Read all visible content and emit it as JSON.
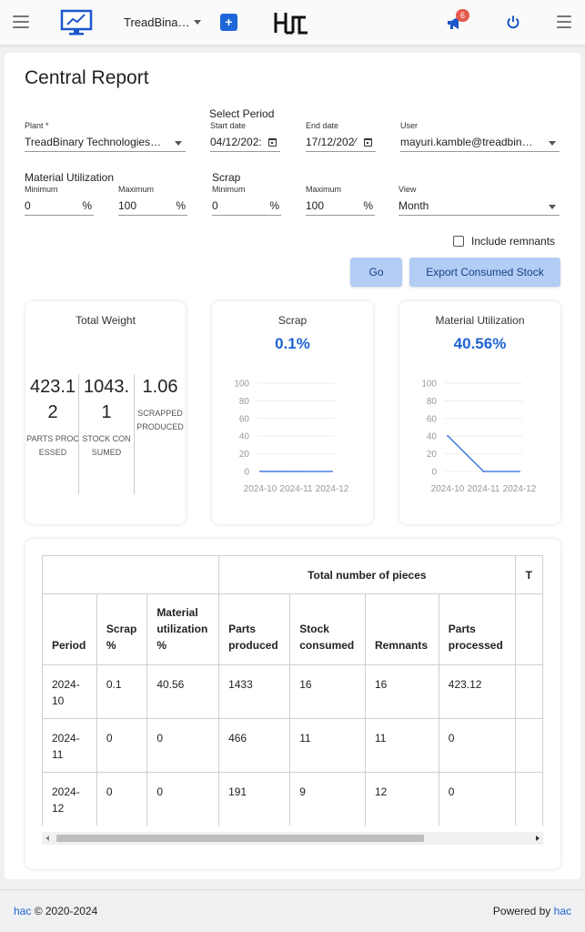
{
  "header": {
    "workspace_name": "TreadBina…",
    "add_label": "+",
    "logo_text": "hac",
    "notification_count": "6"
  },
  "page": {
    "title": "Central Report"
  },
  "filters": {
    "plant": {
      "label": "Plant *",
      "value": "TreadBinary Technologies…"
    },
    "period": {
      "heading": "Select Period",
      "start": {
        "label": "Start date",
        "value": "04/12/202:"
      },
      "end": {
        "label": "End date",
        "value": "17/12/202⁄"
      }
    },
    "user": {
      "label": "User",
      "value": "mayuri.kamble@treadbin…"
    },
    "material_utilization": {
      "heading": "Material Utilization",
      "min_label": "Minimum",
      "min_value": "0",
      "max_label": "Maximum",
      "max_value": "100",
      "unit": "%"
    },
    "scrap": {
      "heading": "Scrap",
      "min_label": "Minimum",
      "min_value": "0",
      "max_label": "Maximum",
      "max_value": "100",
      "unit": "%"
    },
    "view": {
      "label": "View",
      "value": "Month"
    },
    "include_remnants": {
      "label": "Include remnants",
      "checked": false
    }
  },
  "buttons": {
    "go": "Go",
    "export": "Export Consumed Stock"
  },
  "cards": {
    "total_weight": {
      "title": "Total Weight",
      "items": [
        {
          "value": "423.12",
          "label": "PARTS PROCESSED"
        },
        {
          "value": "1043.1",
          "label": "STOCK CONSUMED"
        },
        {
          "value": "1.06",
          "label": "SCRAPPED PRODUCED"
        }
      ]
    },
    "scrap": {
      "title": "Scrap",
      "value": "0.1%"
    },
    "material_utilization": {
      "title": "Material Utilization",
      "value": "40.56%"
    }
  },
  "chart_data": [
    {
      "type": "line",
      "title": "Scrap",
      "x": [
        "2024-10",
        "2024-11",
        "2024-12"
      ],
      "series": [
        {
          "values": [
            0.1,
            0,
            0
          ]
        }
      ],
      "yticks": [
        0,
        20,
        40,
        60,
        80,
        100
      ],
      "ylim": [
        0,
        100
      ],
      "grid": true,
      "color": "#4a80e0"
    },
    {
      "type": "line",
      "title": "Material Utilization",
      "x": [
        "2024-10",
        "2024-11",
        "2024-12"
      ],
      "series": [
        {
          "values": [
            40.56,
            0,
            0
          ]
        }
      ],
      "yticks": [
        0,
        20,
        40,
        60,
        80,
        100
      ],
      "ylim": [
        0,
        100
      ],
      "grid": true,
      "color": "#4a80e0"
    }
  ],
  "table": {
    "group_headers": [
      "Total number of pieces",
      "T"
    ],
    "columns": [
      "Period",
      "Scrap %",
      "Material utilization %",
      "Parts produced",
      "Stock consumed",
      "Remnants",
      "Parts processed"
    ],
    "rows": [
      [
        "2024-10",
        "0.1",
        "40.56",
        "1433",
        "16",
        "16",
        "423.12"
      ],
      [
        "2024-11",
        "0",
        "0",
        "466",
        "11",
        "11",
        "0"
      ],
      [
        "2024-12",
        "0",
        "0",
        "191",
        "9",
        "12",
        "0"
      ]
    ]
  },
  "footer": {
    "brand": "hac",
    "copyright": "© 2020-2024",
    "powered_by": "Powered by",
    "powered_brand": "hac"
  },
  "colors": {
    "accent": "#1f63d1",
    "button_bg": "#b3cdf4",
    "badge": "#e55a4e"
  }
}
